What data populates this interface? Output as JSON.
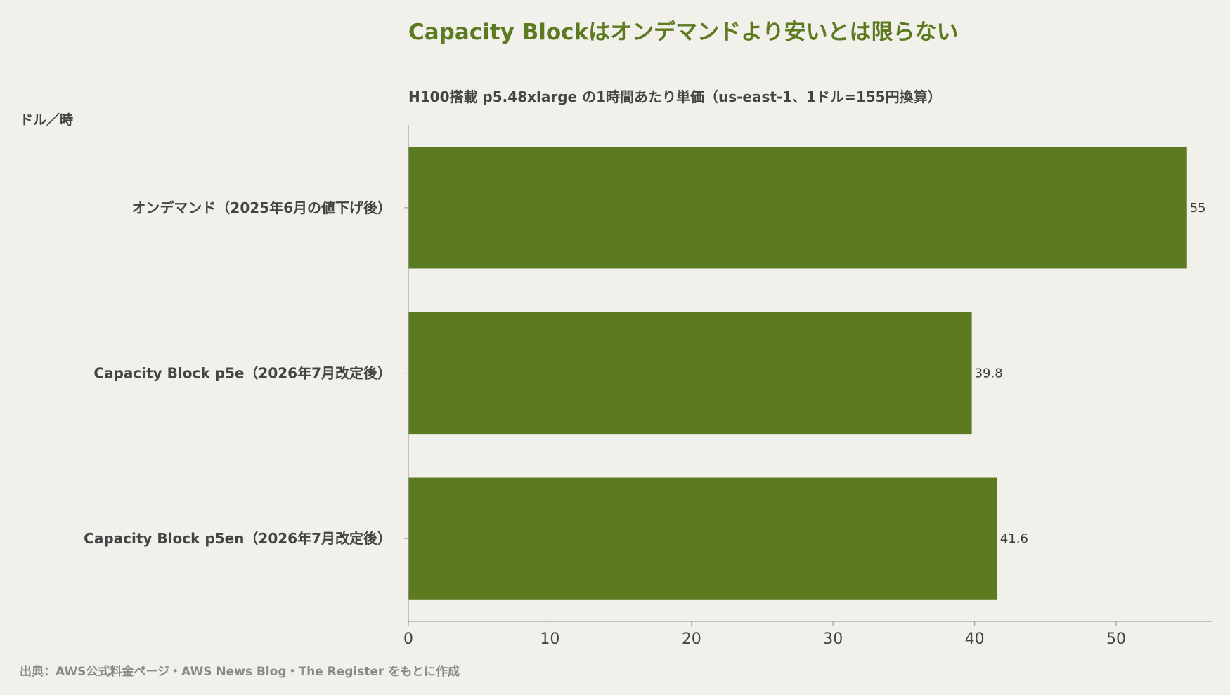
{
  "header": {
    "title": "Capacity Blockはオンデマンドより安いとは限らない",
    "subtitle": "H100搭載 p5.48xlarge の1時間あたり単価（us-east-1、1ドル=155円換算）",
    "unit_label": "ドル／時"
  },
  "footer": {
    "source": "出典：AWS公式料金ページ・AWS News Blog・The Register をもとに作成"
  },
  "chart_data": {
    "type": "bar",
    "orientation": "horizontal",
    "title": "Capacity Blockはオンデマンドより安いとは限らない",
    "subtitle": "H100搭載 p5.48xlarge の1時間あたり単価（us-east-1、1ドル=155円換算）",
    "unit": "ドル／時",
    "categories": [
      "オンデマンド（2025年6月の値下げ後）",
      "Capacity Block p5e（2026年7月改定後）",
      "Capacity Block p5en（2026年7月改定後）"
    ],
    "values": [
      55,
      39.8,
      41.6
    ],
    "data_labels": [
      "55",
      "39.8",
      "41.6"
    ],
    "xlim": [
      0,
      56.8
    ],
    "xticks": [
      0,
      10,
      20,
      30,
      40,
      50
    ],
    "xtick_labels": [
      "0",
      "10",
      "20",
      "30",
      "40",
      "50"
    ],
    "grid": false,
    "bar_color": "#5c7a1f"
  },
  "colors": {
    "background": "#f2f0ea",
    "accent": "#5c7a1f",
    "axis": "#a0a0a0"
  }
}
